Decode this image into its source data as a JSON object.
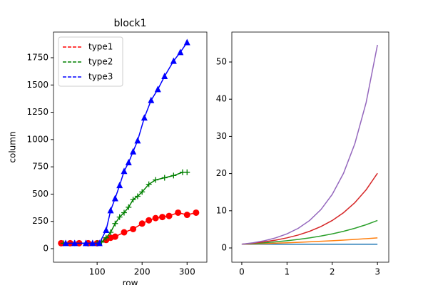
{
  "chart_data": [
    {
      "type": "line",
      "title": "block1",
      "xlabel": "row",
      "ylabel": "column",
      "xlim": [
        3,
        344
      ],
      "ylim": [
        -124,
        1985
      ],
      "xticks": [
        100,
        200,
        300
      ],
      "yticks": [
        0,
        250,
        500,
        750,
        1000,
        1250,
        1500,
        1750
      ],
      "legend": "upper left",
      "series": [
        {
          "name": "type1",
          "color": "#ff0000",
          "marker": "circle",
          "x": [
            20,
            40,
            60,
            80,
            100,
            120,
            130,
            140,
            160,
            180,
            200,
            215,
            230,
            245,
            260,
            280,
            300,
            320
          ],
          "values": [
            50,
            50,
            50,
            50,
            50,
            80,
            100,
            110,
            150,
            180,
            230,
            260,
            280,
            290,
            300,
            330,
            310,
            330
          ]
        },
        {
          "name": "type2",
          "color": "#008000",
          "marker": "plus",
          "x": [
            25,
            50,
            75,
            90,
            100,
            110,
            120,
            130,
            140,
            150,
            160,
            170,
            180,
            190,
            200,
            215,
            230,
            250,
            270,
            290,
            300
          ],
          "values": [
            50,
            50,
            50,
            50,
            50,
            60,
            100,
            150,
            230,
            290,
            330,
            380,
            450,
            480,
            520,
            590,
            630,
            650,
            670,
            700,
            700
          ]
        },
        {
          "name": "type3",
          "color": "#0000ff",
          "marker": "triangle",
          "x": [
            30,
            50,
            75,
            90,
            105,
            120,
            130,
            140,
            150,
            160,
            170,
            180,
            190,
            205,
            220,
            235,
            250,
            270,
            285,
            300
          ],
          "values": [
            50,
            50,
            50,
            50,
            50,
            170,
            350,
            460,
            580,
            710,
            790,
            890,
            990,
            1200,
            1360,
            1460,
            1580,
            1720,
            1800,
            1890
          ]
        }
      ]
    },
    {
      "type": "line",
      "xlim": [
        -0.22,
        3.25
      ],
      "ylim": [
        -3.83,
        58.05
      ],
      "xticks": [
        0,
        1,
        2,
        3
      ],
      "yticks": [
        0,
        10,
        20,
        30,
        40,
        50
      ],
      "x": [
        0,
        0.25,
        0.5,
        0.75,
        1,
        1.25,
        1.5,
        1.75,
        2,
        2.25,
        2.5,
        2.75,
        3
      ],
      "series": [
        {
          "color": "#1f77b4",
          "values": [
            1,
            1,
            1,
            1,
            1,
            1,
            1,
            1,
            1,
            1,
            1,
            1,
            1
          ]
        },
        {
          "color": "#ff7f0e",
          "values": [
            1,
            1.087,
            1.181,
            1.284,
            1.396,
            1.517,
            1.649,
            1.792,
            1.948,
            2.117,
            2.301,
            2.501,
            2.718
          ]
        },
        {
          "color": "#2ca02c",
          "values": [
            1,
            1.181,
            1.396,
            1.649,
            1.948,
            2.301,
            2.718,
            3.211,
            3.794,
            4.482,
            5.294,
            6.254,
            7.389
          ]
        },
        {
          "color": "#d62728",
          "values": [
            1,
            1.284,
            1.649,
            2.117,
            2.718,
            3.49,
            4.482,
            5.755,
            7.389,
            9.488,
            12.182,
            15.643,
            20.086
          ]
        },
        {
          "color": "#9467bd",
          "values": [
            1,
            1.396,
            1.948,
            2.718,
            3.794,
            5.294,
            7.389,
            10.312,
            14.392,
            20.086,
            28.032,
            39.121,
            54.598
          ]
        }
      ]
    }
  ]
}
